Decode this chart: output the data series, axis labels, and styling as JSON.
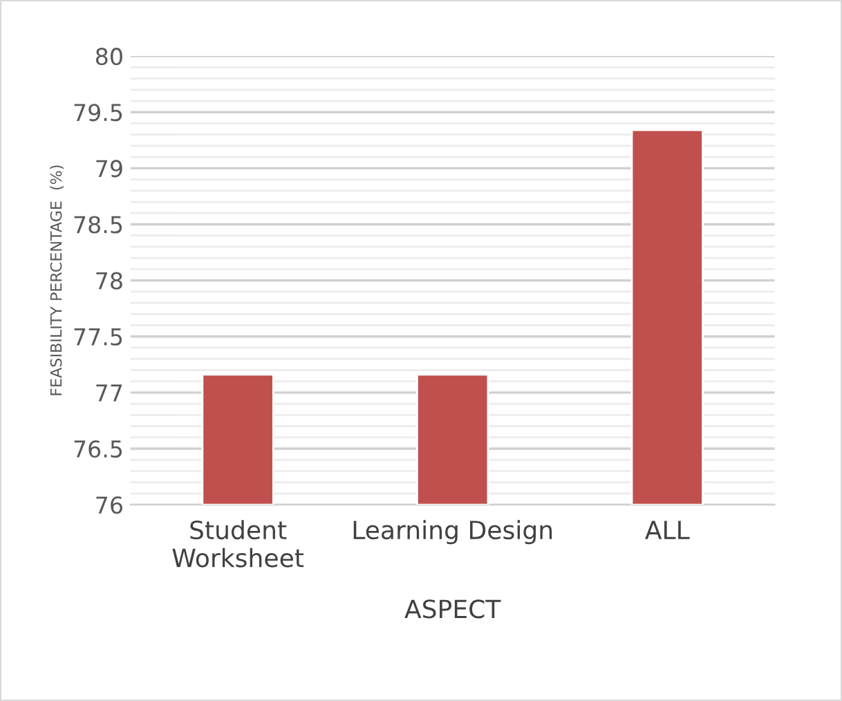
{
  "chart_data": {
    "type": "bar",
    "xlabel": "ASPECT",
    "ylabel": "FEASIBILITY PERCENTAGE  (%)",
    "categories": [
      "Student\nWorksheet",
      "Learning Design",
      "ALL"
    ],
    "values": [
      77.16,
      77.16,
      79.34
    ],
    "color": "#c0504d",
    "ylim": [
      76,
      80
    ],
    "yticks": [
      76,
      {
        "value": 76.1,
        "label": null
      },
      {
        "value": 76.2,
        "label": null
      },
      {
        "value": 76.3,
        "label": null
      },
      {
        "value": 76.4,
        "label": null
      },
      76.5,
      {
        "value": 76.6,
        "label": null
      },
      {
        "value": 76.7,
        "label": null
      },
      {
        "value": 76.8,
        "label": null
      },
      {
        "value": 76.9,
        "label": null
      },
      77,
      {
        "value": 77.1,
        "label": null
      },
      {
        "value": 77.2,
        "label": null
      },
      {
        "value": 77.3,
        "label": null
      },
      {
        "value": 77.4,
        "label": null
      },
      77.5,
      {
        "value": 77.6,
        "label": null
      },
      {
        "value": 77.7,
        "label": null
      },
      {
        "value": 77.8,
        "label": null
      },
      {
        "value": 77.9,
        "label": null
      },
      78,
      {
        "value": 78.1,
        "label": null
      },
      {
        "value": 78.2,
        "label": null
      },
      {
        "value": 78.3,
        "label": null
      },
      {
        "value": 78.4,
        "label": null
      },
      78.5,
      {
        "value": 78.6,
        "label": null
      },
      {
        "value": 78.7,
        "label": null
      },
      {
        "value": 78.8,
        "label": null
      },
      {
        "value": 78.9,
        "label": null
      },
      79,
      {
        "value": 79.1,
        "label": null
      },
      {
        "value": 79.2,
        "label": null
      },
      {
        "value": 79.3,
        "label": null
      },
      {
        "value": 79.4,
        "label": null
      },
      79.5,
      {
        "value": 79.6,
        "label": null
      },
      {
        "value": 79.7,
        "label": null
      },
      {
        "value": 79.8,
        "label": null
      },
      {
        "value": 79.9,
        "label": null
      },
      80
    ],
    "grid": "y",
    "legend": false
  }
}
